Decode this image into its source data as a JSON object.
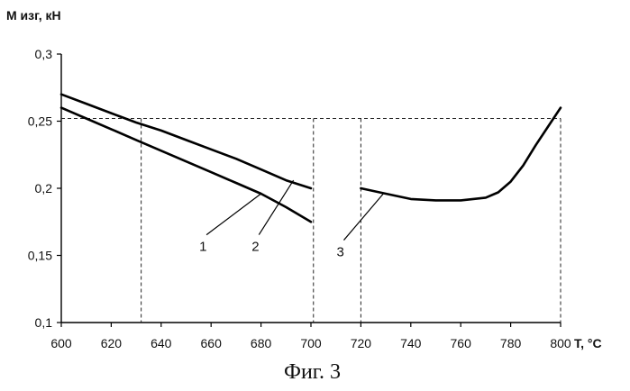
{
  "figure": {
    "caption": "Фиг. 3"
  },
  "chart_data": {
    "type": "line",
    "ylabel": "М изг, кН",
    "xlabel": "Т, °С",
    "xlim": [
      600,
      800
    ],
    "ylim": [
      0.1,
      0.3
    ],
    "x_ticks": [
      600,
      620,
      640,
      660,
      680,
      700,
      720,
      740,
      760,
      780,
      800
    ],
    "y_ticks": [
      0.1,
      0.15,
      0.2,
      0.25,
      0.3
    ],
    "y_tick_labels": [
      "0,1",
      "0,15",
      "0,2",
      "0,25",
      "0,3"
    ],
    "x_tick_labels": [
      "600",
      "620",
      "640",
      "660",
      "680",
      "700",
      "720",
      "740",
      "760",
      "780",
      "800"
    ],
    "grid": false,
    "series": [
      {
        "name": "1",
        "x": [
          600,
          610,
          620,
          630,
          640,
          650,
          660,
          670,
          680,
          690,
          700
        ],
        "y": [
          0.26,
          0.252,
          0.244,
          0.236,
          0.228,
          0.22,
          0.212,
          0.204,
          0.196,
          0.186,
          0.175
        ]
      },
      {
        "name": "2",
        "x": [
          600,
          610,
          620,
          630,
          640,
          650,
          660,
          670,
          680,
          690,
          700
        ],
        "y": [
          0.27,
          0.263,
          0.256,
          0.249,
          0.243,
          0.236,
          0.229,
          0.222,
          0.214,
          0.206,
          0.2
        ]
      },
      {
        "name": "3",
        "x": [
          720,
          730,
          740,
          750,
          760,
          770,
          775,
          780,
          785,
          790,
          795,
          800
        ],
        "y": [
          0.2,
          0.196,
          0.192,
          0.191,
          0.191,
          0.193,
          0.197,
          0.205,
          0.217,
          0.232,
          0.246,
          0.26
        ]
      }
    ],
    "reference_lines": {
      "horizontal_y": 0.252,
      "vertical_x": [
        632,
        701,
        720,
        800
      ]
    },
    "annotations": [
      {
        "label": "1",
        "point_x": 680,
        "point_y": 0.196,
        "text_x": 656,
        "text_y": 0.16
      },
      {
        "label": "2",
        "point_x": 693,
        "point_y": 0.206,
        "text_x": 677,
        "text_y": 0.16
      },
      {
        "label": "3",
        "point_x": 729,
        "point_y": 0.196,
        "text_x": 711,
        "text_y": 0.156
      }
    ]
  }
}
